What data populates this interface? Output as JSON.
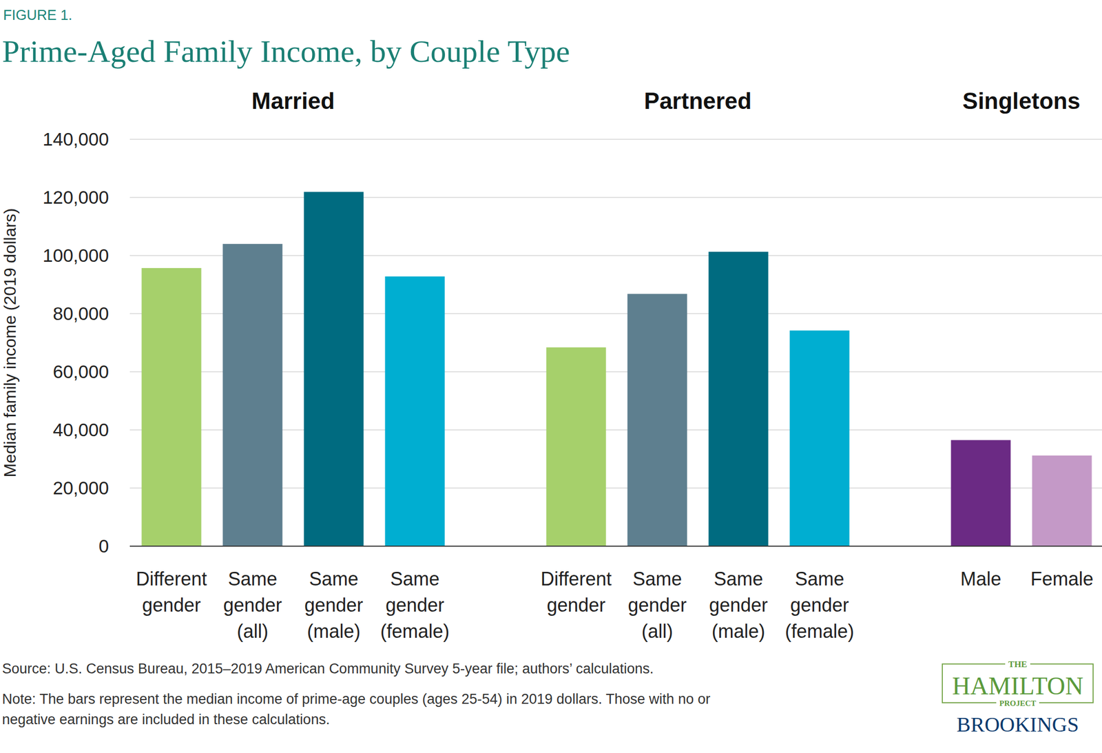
{
  "header": {
    "label": "FIGURE 1.",
    "title": "Prime-Aged Family Income, by Couple Type"
  },
  "chart_data": [
    {
      "type": "bar",
      "title": "Married",
      "y_label": "Median family income (2019 dollars)",
      "categories": [
        "Different gender",
        "Same gender (all)",
        "Same gender (male)",
        "Same gender (female)"
      ],
      "values": [
        95700,
        104000,
        121900,
        92800
      ],
      "colors": [
        "#a6d06b",
        "#5e7f8f",
        "#006b80",
        "#00aed1"
      ],
      "ylim": [
        0,
        140000
      ],
      "yticks": [
        0,
        {
          "value": 20000,
          "label": "20,000"
        },
        {
          "value": 40000,
          "label": "40,000"
        },
        {
          "value": 60000,
          "label": "60,000"
        },
        {
          "value": 80000,
          "label": "80,000"
        },
        {
          "value": 100000,
          "label": "100,000"
        },
        {
          "value": 120000,
          "label": "120,000"
        },
        {
          "value": 140000,
          "label": "140,000"
        }
      ],
      "grid": true
    },
    {
      "type": "bar",
      "title": "Partnered",
      "categories": [
        "Different gender",
        "Same gender (all)",
        "Same gender (male)",
        "Same gender (female)"
      ],
      "values": [
        68400,
        86800,
        101300,
        74200
      ],
      "colors": [
        "#a6d06b",
        "#5e7f8f",
        "#006b80",
        "#00aed1"
      ],
      "ylim": [
        0,
        140000
      ],
      "yticks": [
        0,
        {
          "value": 20000,
          "label": "20,000"
        },
        {
          "value": 40000,
          "label": "40,000"
        },
        {
          "value": 60000,
          "label": "60,000"
        },
        {
          "value": 80000,
          "label": "80,000"
        },
        {
          "value": 100000,
          "label": "100,000"
        },
        {
          "value": 120000,
          "label": "120,000"
        },
        {
          "value": 140000,
          "label": "140,000"
        }
      ],
      "grid": true,
      "tick_labels": "x"
    },
    {
      "type": "bar",
      "title": "Singletons",
      "categories": [
        "Male",
        "Female"
      ],
      "values": [
        36500,
        31200
      ],
      "colors": [
        "#6b2a84",
        "#c499c7"
      ],
      "ylim": [
        0,
        140000
      ],
      "yticks": [
        0,
        {
          "value": 20000,
          "label": "20,000"
        },
        {
          "value": 40000,
          "label": "40,000"
        },
        {
          "value": 60000,
          "label": "60,000"
        },
        {
          "value": 80000,
          "label": "80,000"
        },
        {
          "value": 100000,
          "label": "100,000"
        },
        {
          "value": 120000,
          "label": "120,000"
        },
        {
          "value": 140000,
          "label": "140,000"
        }
      ],
      "grid": true,
      "tick_labels": "x"
    }
  ],
  "footer": {
    "source": "Source: U.S. Census Bureau, 2015–2019 American Community Survey 5-year file; authors’ calculations.",
    "note": [
      "Note: The bars represent the median income of prime-age couples (ages 25-54) in 2019 dollars. Those with no or",
      "negative earnings are included in these calculations."
    ],
    "logo": {
      "top": "THE",
      "name": "HAMILTON",
      "sub": "PROJECT",
      "brand": "BROOKINGS"
    }
  }
}
